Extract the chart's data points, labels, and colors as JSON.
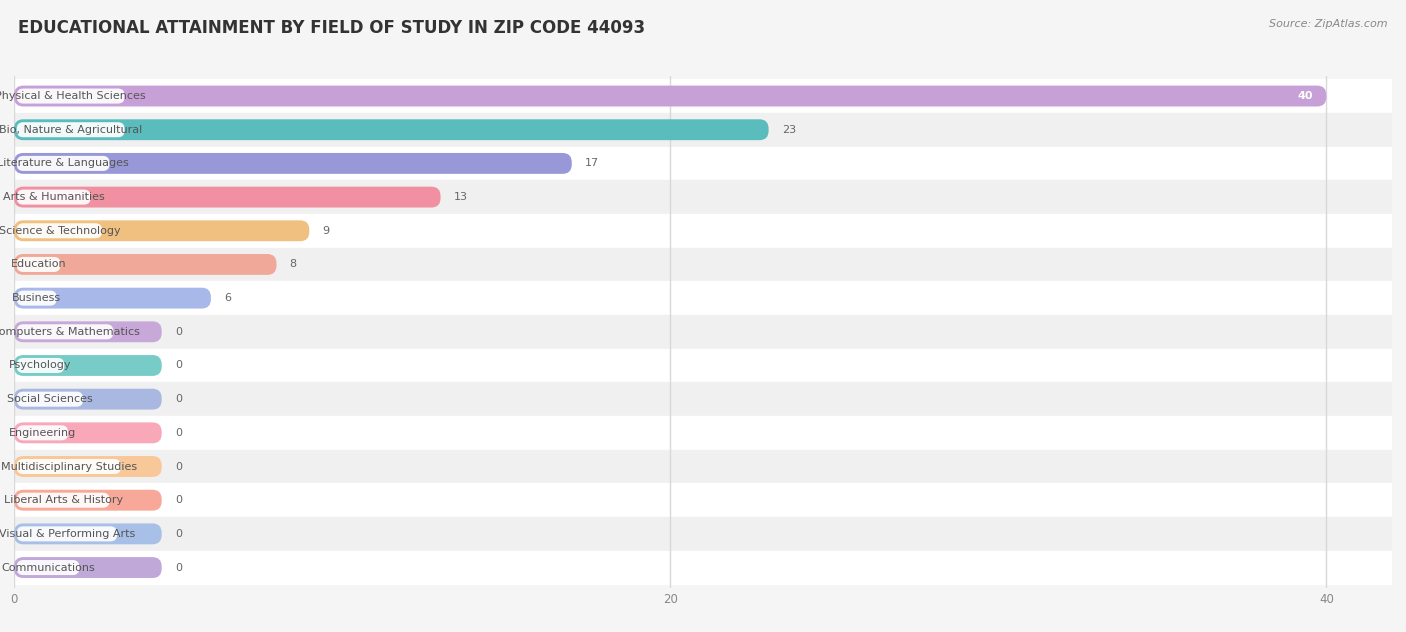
{
  "title": "EDUCATIONAL ATTAINMENT BY FIELD OF STUDY IN ZIP CODE 44093",
  "source": "Source: ZipAtlas.com",
  "categories": [
    "Physical & Health Sciences",
    "Bio, Nature & Agricultural",
    "Literature & Languages",
    "Arts & Humanities",
    "Science & Technology",
    "Education",
    "Business",
    "Computers & Mathematics",
    "Psychology",
    "Social Sciences",
    "Engineering",
    "Multidisciplinary Studies",
    "Liberal Arts & History",
    "Visual & Performing Arts",
    "Communications"
  ],
  "values": [
    40,
    23,
    17,
    13,
    9,
    8,
    6,
    0,
    0,
    0,
    0,
    0,
    0,
    0,
    0
  ],
  "bar_colors": [
    "#c8a0d8",
    "#5bbcbe",
    "#9898d8",
    "#f090a0",
    "#f0c080",
    "#f0a898",
    "#a8b8e8",
    "#c8a8d8",
    "#78ccc8",
    "#a8b8e0",
    "#f8a8b8",
    "#f8c898",
    "#f8a898",
    "#a8c0e8",
    "#c0a8d8"
  ],
  "row_colors": [
    "#ffffff",
    "#f0f0f0"
  ],
  "grid_color": "#d8d8d8",
  "xlim": [
    0,
    42
  ],
  "xticks": [
    0,
    20,
    40
  ],
  "background_color": "#f5f5f5",
  "title_fontsize": 12,
  "label_fontsize": 8,
  "value_fontsize": 8,
  "bar_height": 0.62,
  "min_bar_width": 4.5
}
